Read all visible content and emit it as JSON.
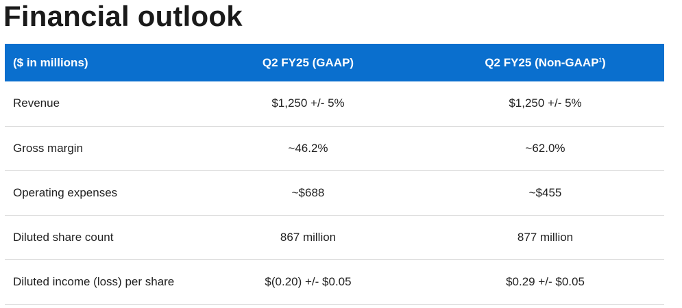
{
  "page_title": "Financial outlook",
  "table": {
    "headers": {
      "label": "($ in millions)",
      "gaap": "Q2 FY25 (GAAP)",
      "nongaap": "Q2 FY25 (Non-GAAP",
      "nongaap_footnote": "1",
      "nongaap_close": ")"
    },
    "rows": [
      {
        "label": "Revenue",
        "gaap": "$1,250 +/- 5%",
        "nongaap": "$1,250 +/- 5%"
      },
      {
        "label": "Gross margin",
        "gaap": "~46.2%",
        "nongaap": "~62.0%"
      },
      {
        "label": "Operating expenses",
        "gaap": "~$688",
        "nongaap": "~$455"
      },
      {
        "label": "Diluted share count",
        "gaap": "867 million",
        "nongaap": "877 million"
      },
      {
        "label": "Diluted income (loss) per share",
        "gaap": "$(0.20) +/- $0.05",
        "nongaap": "$0.29 +/- $0.05"
      }
    ]
  },
  "colors": {
    "header_background": "#0a6fce",
    "header_text": "#ffffff",
    "row_divider": "#d4d4d4"
  }
}
